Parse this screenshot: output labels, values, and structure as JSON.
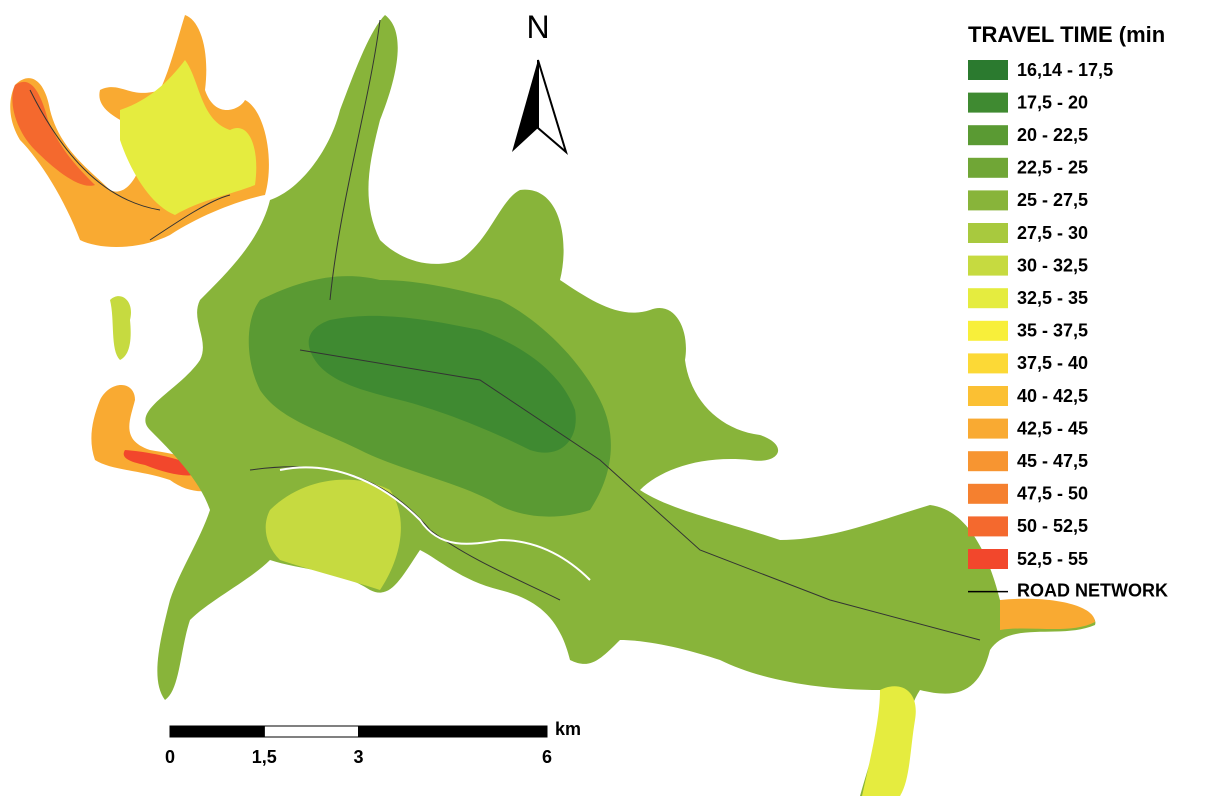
{
  "map": {
    "north": "N",
    "legend": {
      "title": "TRAVEL TIME (min",
      "items": [
        {
          "label": "16,14 - 17,5",
          "color": "#2b7a2f"
        },
        {
          "label": "17,5 - 20",
          "color": "#3f8a31"
        },
        {
          "label": "20 - 22,5",
          "color": "#5a9a33"
        },
        {
          "label": "22,5 - 25",
          "color": "#70a636"
        },
        {
          "label": "25 - 27,5",
          "color": "#88b43a"
        },
        {
          "label": "27,5 - 30",
          "color": "#a8c93e"
        },
        {
          "label": "30 - 32,5",
          "color": "#c6da40"
        },
        {
          "label": "32,5 - 35",
          "color": "#e5ec3f"
        },
        {
          "label": "35 - 37,5",
          "color": "#f8ef3a"
        },
        {
          "label": "37,5 - 40",
          "color": "#fcd936"
        },
        {
          "label": "40 - 42,5",
          "color": "#fbc033"
        },
        {
          "label": "42,5 - 45",
          "color": "#f9aa32"
        },
        {
          "label": "45 - 47,5",
          "color": "#f79531"
        },
        {
          "label": "47,5 - 50",
          "color": "#f5802f"
        },
        {
          "label": "50 - 52,5",
          "color": "#f4692e"
        },
        {
          "label": "52,5 - 55",
          "color": "#f2472c"
        }
      ],
      "road_network": "ROAD NETWORK"
    },
    "scale_bar": {
      "unit": "km",
      "range": [
        0,
        6
      ],
      "ticks": [
        0,
        {
          "value": 1.5,
          "label": "1,5"
        },
        3,
        6
      ]
    }
  }
}
